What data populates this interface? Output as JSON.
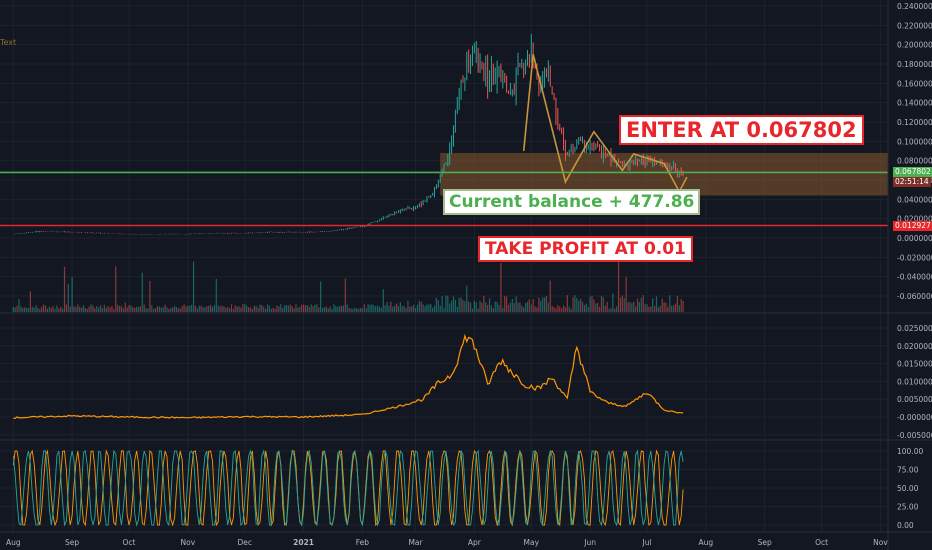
{
  "chart_data": [
    {
      "type": "candlestick",
      "panel": "price",
      "x_axis_labels": [
        "Aug",
        "Sep",
        "Oct",
        "Nov",
        "Dec",
        "2021",
        "Feb",
        "Mar",
        "Apr",
        "May",
        "Jun",
        "Jul",
        "Aug",
        "Sep",
        "Oct",
        "Nov"
      ],
      "y_ticks": [
        "0.240000",
        "0.220000",
        "0.200000",
        "0.180000",
        "0.160000",
        "0.140000",
        "0.120000",
        "0.100000",
        "0.080000",
        "0.060000",
        "0.040000",
        "0.020000",
        "0.000000",
        "-0.020000",
        "-0.040000",
        "-0.060000"
      ],
      "ylim": [
        -0.07,
        0.245
      ],
      "price_series": {
        "x": [
          "2020-08-01",
          "2020-08-15",
          "2020-09-01",
          "2020-09-15",
          "2020-10-01",
          "2020-10-15",
          "2020-11-01",
          "2020-11-15",
          "2020-12-01",
          "2020-12-15",
          "2021-01-01",
          "2021-01-15",
          "2021-02-01",
          "2021-02-10",
          "2021-02-20",
          "2021-03-01",
          "2021-03-10",
          "2021-03-18",
          "2021-03-25",
          "2021-04-01",
          "2021-04-05",
          "2021-04-10",
          "2021-04-15",
          "2021-04-20",
          "2021-04-25",
          "2021-05-01",
          "2021-05-05",
          "2021-05-10",
          "2021-05-15",
          "2021-05-20",
          "2021-05-25",
          "2021-06-01",
          "2021-06-10",
          "2021-06-20",
          "2021-07-01",
          "2021-07-10",
          "2021-07-20"
        ],
        "close": [
          0.004,
          0.007,
          0.006,
          0.005,
          0.004,
          0.004,
          0.004,
          0.005,
          0.005,
          0.006,
          0.006,
          0.007,
          0.012,
          0.019,
          0.028,
          0.032,
          0.045,
          0.085,
          0.16,
          0.195,
          0.17,
          0.165,
          0.17,
          0.145,
          0.175,
          0.19,
          0.16,
          0.17,
          0.12,
          0.085,
          0.1,
          0.095,
          0.085,
          0.075,
          0.08,
          0.075,
          0.068
        ],
        "high_peak": 0.215
      },
      "volume_bars": "present",
      "horizontal_lines": [
        {
          "value": 0.067802,
          "color": "#4caf50"
        },
        {
          "value": 0.012927,
          "color": "#e8262b"
        }
      ],
      "zone": {
        "from": 0.044,
        "to": 0.088,
        "color": "#8b5a2b"
      },
      "price_tag": "0.067802",
      "countdown_tag": "02:51:14",
      "tp_tag": "0.012927",
      "annotations": [
        "ENTER AT 0.067802",
        "TAKE PROFIT AT 0.01",
        "Current balance + 477.86"
      ],
      "text_tool": "Text"
    },
    {
      "type": "line",
      "panel": "indicator-1",
      "color": "#ff9800",
      "y_ticks": [
        "0.025000",
        "0.020000",
        "0.015000",
        "0.010000",
        "0.005000",
        "-0.000000",
        "-0.005000"
      ],
      "ylim": [
        -0.006,
        0.027
      ],
      "x": [
        "2020-08-01",
        "2020-09-01",
        "2020-10-01",
        "2020-11-01",
        "2020-12-01",
        "2021-01-01",
        "2021-02-01",
        "2021-02-20",
        "2021-03-05",
        "2021-03-12",
        "2021-03-20",
        "2021-03-28",
        "2021-04-02",
        "2021-04-08",
        "2021-04-15",
        "2021-04-22",
        "2021-04-28",
        "2021-05-05",
        "2021-05-12",
        "2021-05-20",
        "2021-05-25",
        "2021-06-01",
        "2021-06-10",
        "2021-06-20",
        "2021-07-01",
        "2021-07-10",
        "2021-07-20"
      ],
      "values": [
        -0.0002,
        0.0003,
        0.0,
        -0.0002,
        0.0001,
        0.0,
        0.0007,
        0.003,
        0.005,
        0.009,
        0.012,
        0.023,
        0.019,
        0.009,
        0.016,
        0.012,
        0.009,
        0.008,
        0.011,
        0.005,
        0.02,
        0.007,
        0.004,
        0.003,
        0.007,
        0.002,
        0.001
      ]
    },
    {
      "type": "line",
      "panel": "indicator-2",
      "series_colors": [
        "#ff9800",
        "#26a69a"
      ],
      "y_ticks": [
        "100.00",
        "75.00",
        "50.00",
        "25.00",
        "0.00"
      ],
      "ylim": [
        -5,
        110
      ],
      "pattern": "oscillating between 0 and 100"
    }
  ]
}
